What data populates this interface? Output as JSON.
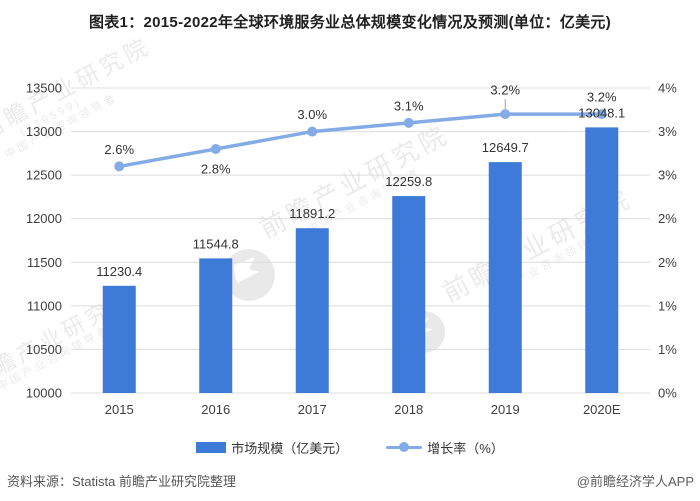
{
  "title": "图表1：2015-2022年全球环境服务业总体规模变化情况及预测(单位：亿美元)",
  "chart_data": {
    "type": "bar",
    "subtype": "combo-bar-line",
    "categories": [
      "2015",
      "2016",
      "2017",
      "2018",
      "2019",
      "2020E"
    ],
    "series": [
      {
        "name": "市场规模（亿美元）",
        "chart_type": "bar",
        "axis": "left",
        "color": "#3E7BD9",
        "values": [
          11230.4,
          11544.8,
          11891.2,
          12259.8,
          12649.7,
          13048.1
        ],
        "labels": [
          "11230.4",
          "11544.8",
          "11891.2",
          "12259.8",
          "12649.7",
          "13048.1"
        ]
      },
      {
        "name": "增长率（%）",
        "chart_type": "line",
        "axis": "right",
        "color": "#84ABE6",
        "values": [
          2.6,
          2.8,
          3.0,
          3.1,
          3.2,
          3.2
        ],
        "labels": [
          "2.6%",
          "2.8%",
          "3.0%",
          "3.1%",
          "3.2%",
          "3.2%"
        ],
        "label_pos": [
          "above",
          "below",
          "above",
          "above",
          "above-leader",
          "above"
        ]
      }
    ],
    "left_axis": {
      "min": 10000,
      "max": 13500,
      "step": 500,
      "ticks": [
        "13500",
        "13000",
        "12500",
        "12000",
        "11500",
        "11000",
        "10500",
        "10000"
      ]
    },
    "right_axis": {
      "min": 0,
      "max": 3.5,
      "step": 0.5,
      "ticks": [
        "4%",
        "3%",
        "3%",
        "2%",
        "2%",
        "1%",
        "1%",
        "0%"
      ]
    },
    "grid": true,
    "gridline_color": "#dcdcdc",
    "leader_line_color": "#b3b3b3",
    "legend_position": "bottom",
    "xlabel": "",
    "ylabel_left": "",
    "ylabel_right": ""
  },
  "legend": {
    "items": [
      {
        "label": "市场规模（亿美元）",
        "swatch": "bar"
      },
      {
        "label": "增长率（%）",
        "swatch": "line"
      }
    ]
  },
  "footer": {
    "source": "资料来源：Statista 前瞻产业研究院整理",
    "credit": "@前瞻经济学人APP"
  },
  "watermarks": {
    "brand": "前瞻产业研究院",
    "tagline": "中国产业咨询领导者",
    "stock_code": "(839599)",
    "logo": "qianzhan-logo"
  }
}
